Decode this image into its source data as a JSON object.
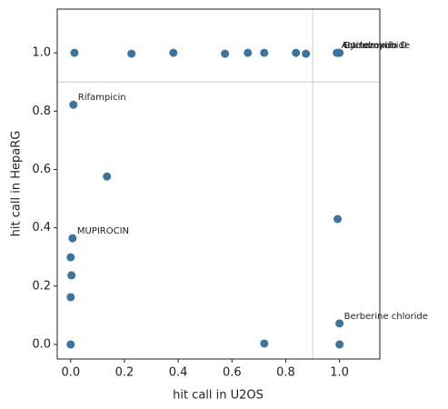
{
  "chart_data": {
    "type": "scatter",
    "xlabel": "hit call in U2OS",
    "ylabel": "hit call in HepaRG",
    "color": "#3a75a0",
    "refline_color": "#cccccc",
    "xlim": [
      -0.05,
      1.15
    ],
    "ylim": [
      -0.05,
      1.15
    ],
    "xticks": [
      {
        "value": 0,
        "label": "0.0"
      },
      {
        "value": 0.2,
        "label": "0.2"
      },
      {
        "value": 0.4,
        "label": "0.4"
      },
      {
        "value": 0.6,
        "label": "0.6"
      },
      {
        "value": 0.8,
        "label": "0.8"
      },
      {
        "value": 1,
        "label": "1.0"
      }
    ],
    "yticks": [
      {
        "value": 0,
        "label": "0.0"
      },
      {
        "value": 0.2,
        "label": "0.2"
      },
      {
        "value": 0.4,
        "label": "0.4"
      },
      {
        "value": 0.6,
        "label": "0.6"
      },
      {
        "value": 0.8,
        "label": "0.8"
      },
      {
        "value": 1,
        "label": "1.0"
      }
    ],
    "vlines": [
      0.9
    ],
    "hlines": [
      0.9
    ],
    "x": [
      0.014,
      0.226,
      0.382,
      0.574,
      0.659,
      0.72,
      0.838,
      0.875,
      0.99,
      0.997,
      1.0,
      0.01,
      0.135,
      0.007,
      0.0,
      0.003,
      0.0,
      0.0,
      0.72,
      0.993,
      1.0,
      1.0
    ],
    "y": [
      1.0,
      0.997,
      1.0,
      0.997,
      1.0,
      1.0,
      1.0,
      0.997,
      1.0,
      1.0,
      1.0,
      0.822,
      0.576,
      0.364,
      0.299,
      0.237,
      0.162,
      0.0,
      0.003,
      0.43,
      0.072,
      0.0
    ],
    "point_labels": [
      null,
      null,
      null,
      null,
      null,
      null,
      null,
      null,
      "Actinomycin D",
      "Cycloheximide",
      "Bortezomib",
      "Rifampicin",
      null,
      "MUPIROCIN",
      null,
      null,
      null,
      null,
      null,
      null,
      "Berberine chloride",
      null
    ]
  }
}
